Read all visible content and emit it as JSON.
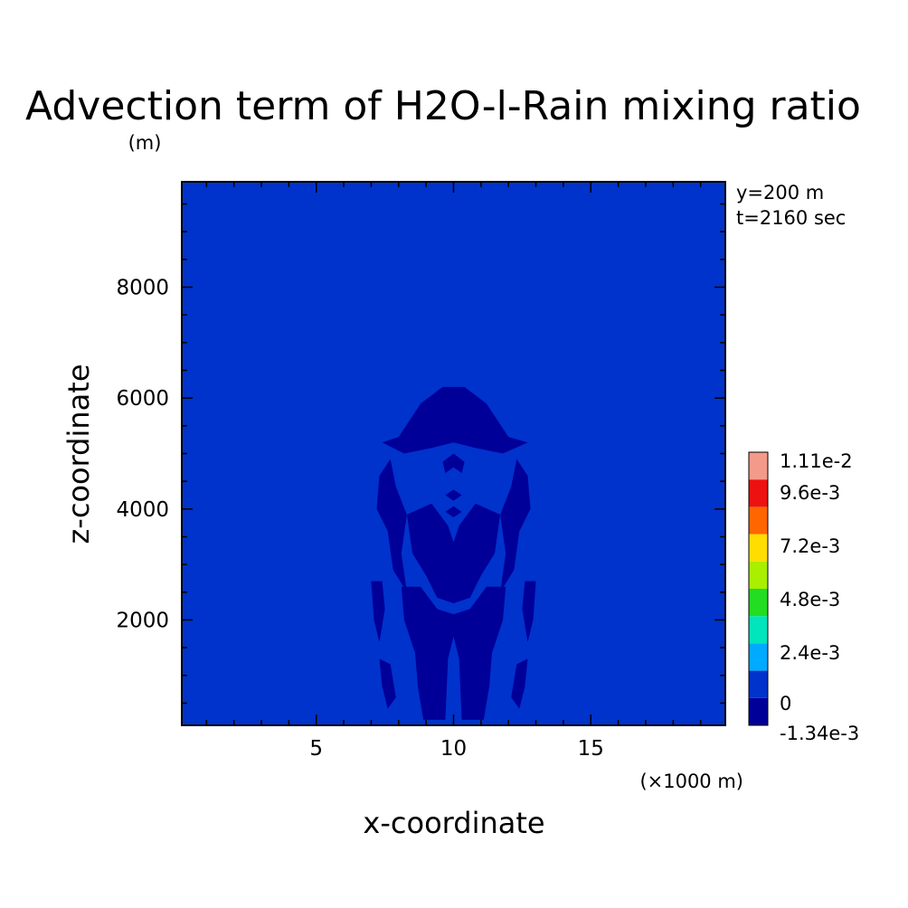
{
  "chart_data": {
    "type": "contour",
    "title": "Advection term of H2O-l-Rain mixing ratio",
    "title_unit": "(m)",
    "xlabel": "x-coordinate",
    "ylabel": "z-coordinate",
    "x_unit": "(×1000 m)",
    "xlim": [
      0.1,
      19.9
    ],
    "ylim": [
      100,
      9900
    ],
    "x_ticks": [
      5,
      10,
      15
    ],
    "y_ticks": [
      2000,
      4000,
      6000,
      8000
    ],
    "annotations": [
      "y=200 m",
      "t=2160 sec"
    ],
    "colorbar": {
      "min": -0.00134,
      "max": 0.0111,
      "tick_labels": [
        "1.11e-2",
        "9.6e-3",
        "7.2e-3",
        "4.8e-3",
        "2.4e-3",
        "0",
        "-1.34e-3"
      ],
      "colors": [
        "#000099",
        "#0033cc",
        "#00aaff",
        "#00e5bb",
        "#22dd22",
        "#aaee00",
        "#ffdd00",
        "#ff6600",
        "#ee1111",
        "#f49a8a"
      ]
    },
    "background_level_color": "#0033cc",
    "negative_level_color": "#000099",
    "negative_regions": [
      [
        [
          8.0,
          5.3
        ],
        [
          8.8,
          5.9
        ],
        [
          9.6,
          6.2
        ],
        [
          10.4,
          6.2
        ],
        [
          11.2,
          5.9
        ],
        [
          12.0,
          5.3
        ],
        [
          12.7,
          5.2
        ],
        [
          11.8,
          5.0
        ],
        [
          10.8,
          5.1
        ],
        [
          10.0,
          5.2
        ],
        [
          9.2,
          5.1
        ],
        [
          8.2,
          5.0
        ],
        [
          7.4,
          5.2
        ]
      ],
      [
        [
          7.2,
          4.0
        ],
        [
          7.6,
          3.6
        ],
        [
          7.8,
          2.9
        ],
        [
          8.3,
          2.5
        ],
        [
          8.1,
          3.2
        ],
        [
          8.3,
          3.9
        ],
        [
          7.9,
          4.4
        ],
        [
          7.7,
          4.9
        ],
        [
          7.3,
          4.6
        ]
      ],
      [
        [
          12.8,
          4.0
        ],
        [
          12.4,
          3.6
        ],
        [
          12.2,
          2.9
        ],
        [
          11.7,
          2.5
        ],
        [
          11.9,
          3.2
        ],
        [
          11.7,
          3.9
        ],
        [
          12.1,
          4.4
        ],
        [
          12.3,
          4.9
        ],
        [
          12.7,
          4.6
        ]
      ],
      [
        [
          8.3,
          3.9
        ],
        [
          9.2,
          4.1
        ],
        [
          9.8,
          3.7
        ],
        [
          10.0,
          3.4
        ],
        [
          10.2,
          3.7
        ],
        [
          10.8,
          4.1
        ],
        [
          11.7,
          3.9
        ],
        [
          11.5,
          3.2
        ],
        [
          11.0,
          2.8
        ],
        [
          10.6,
          2.4
        ],
        [
          10.0,
          2.3
        ],
        [
          9.4,
          2.4
        ],
        [
          9.0,
          2.8
        ],
        [
          8.5,
          3.2
        ]
      ],
      [
        [
          8.1,
          2.6
        ],
        [
          8.8,
          2.6
        ],
        [
          9.4,
          2.2
        ],
        [
          10.0,
          2.1
        ],
        [
          10.6,
          2.2
        ],
        [
          11.2,
          2.6
        ],
        [
          11.9,
          2.6
        ],
        [
          11.8,
          2.0
        ],
        [
          11.4,
          1.4
        ],
        [
          11.3,
          0.8
        ],
        [
          11.1,
          0.2
        ],
        [
          10.3,
          0.2
        ],
        [
          10.2,
          1.3
        ],
        [
          10.0,
          1.7
        ],
        [
          9.8,
          1.3
        ],
        [
          9.7,
          0.2
        ],
        [
          8.9,
          0.2
        ],
        [
          8.7,
          0.8
        ],
        [
          8.6,
          1.4
        ],
        [
          8.2,
          2.0
        ]
      ],
      [
        [
          9.6,
          4.85
        ],
        [
          10.0,
          5.0
        ],
        [
          10.4,
          4.85
        ],
        [
          10.3,
          4.65
        ],
        [
          10.0,
          4.75
        ],
        [
          9.7,
          4.65
        ]
      ],
      [
        [
          9.7,
          4.25
        ],
        [
          10.0,
          4.35
        ],
        [
          10.3,
          4.25
        ],
        [
          10.0,
          4.15
        ]
      ],
      [
        [
          9.7,
          3.95
        ],
        [
          10.0,
          4.05
        ],
        [
          10.3,
          3.95
        ],
        [
          10.0,
          3.85
        ]
      ],
      [
        [
          7.0,
          2.7
        ],
        [
          7.4,
          2.7
        ],
        [
          7.5,
          2.2
        ],
        [
          7.3,
          1.6
        ],
        [
          7.1,
          2.0
        ]
      ],
      [
        [
          13.0,
          2.7
        ],
        [
          12.6,
          2.7
        ],
        [
          12.5,
          2.2
        ],
        [
          12.7,
          1.6
        ],
        [
          12.9,
          2.0
        ]
      ],
      [
        [
          7.3,
          1.3
        ],
        [
          7.7,
          1.2
        ],
        [
          7.9,
          0.6
        ],
        [
          7.6,
          0.4
        ],
        [
          7.4,
          0.8
        ]
      ],
      [
        [
          12.7,
          1.3
        ],
        [
          12.3,
          1.2
        ],
        [
          12.1,
          0.6
        ],
        [
          12.4,
          0.4
        ],
        [
          12.6,
          0.8
        ]
      ]
    ]
  }
}
